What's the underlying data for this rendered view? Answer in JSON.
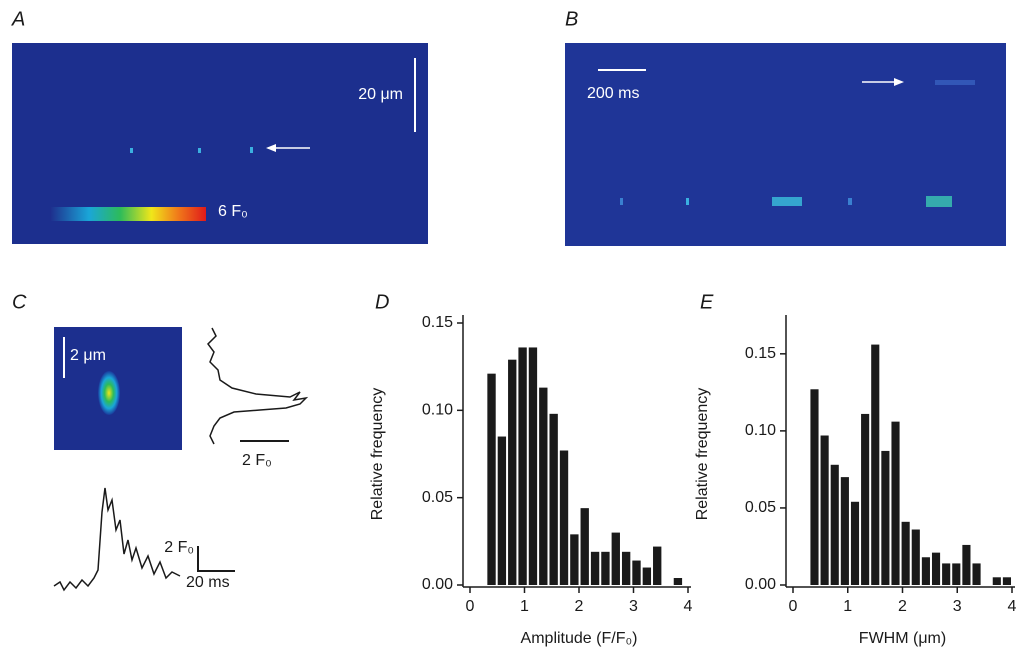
{
  "panels": {
    "A": {
      "label": "A",
      "scale_bar": "20 μm",
      "colorbar": "6 F₀"
    },
    "B": {
      "label": "B",
      "scale_bar": "200 ms"
    },
    "C": {
      "label": "C",
      "image_scale": "2 μm",
      "profile_scale": "2 F₀",
      "trace_scale_y": "2 F₀",
      "trace_scale_x": "20 ms"
    }
  },
  "chart_data": [
    {
      "type": "histogram",
      "label": "D",
      "xlabel": "Amplitude (F/F₀)",
      "ylabel": "Relative frequency",
      "color": "#1a1a1a",
      "bins": [
        0.3,
        0.49,
        0.68,
        0.87,
        1.06,
        1.25,
        1.44,
        1.63,
        1.82,
        2.01,
        2.2,
        2.39,
        2.58,
        2.77,
        2.96,
        3.15,
        3.34,
        3.53,
        3.72,
        3.91
      ],
      "counts": [
        0.121,
        0.085,
        0.129,
        0.136,
        0.136,
        0.113,
        0.098,
        0.077,
        0.029,
        0.044,
        0.019,
        0.019,
        0.03,
        0.019,
        0.014,
        0.01,
        0.022,
        0,
        0.004
      ],
      "xlim": [
        0,
        4
      ],
      "ylim": [
        0,
        0.15
      ],
      "xticks": [
        0,
        1,
        2,
        3,
        4
      ],
      "yticks": [
        {
          "value": 0,
          "label": "0.00"
        },
        {
          "value": 0.05,
          "label": "0.05"
        },
        {
          "value": 0.1,
          "label": "0.10"
        },
        {
          "value": 0.15,
          "label": "0.15"
        }
      ]
    },
    {
      "type": "histogram",
      "label": "E",
      "xlabel": "FWHM (μm)",
      "ylabel": "Relative frequency",
      "color": "#1a1a1a",
      "bins": [
        0.3,
        0.485,
        0.67,
        0.855,
        1.04,
        1.225,
        1.41,
        1.595,
        1.78,
        1.965,
        2.15,
        2.335,
        2.52,
        2.705,
        2.89,
        3.075,
        3.26,
        3.445,
        3.63,
        3.815,
        4.0
      ],
      "counts": [
        0.127,
        0.097,
        0.078,
        0.07,
        0.054,
        0.111,
        0.156,
        0.087,
        0.106,
        0.041,
        0.036,
        0.018,
        0.021,
        0.014,
        0.014,
        0.026,
        0.014,
        0,
        0.005,
        0.005
      ],
      "xlim": [
        0,
        4
      ],
      "ylim": [
        0,
        0.17
      ],
      "xticks": [
        0,
        1,
        2,
        3,
        4
      ],
      "yticks": [
        {
          "value": 0,
          "label": "0.00"
        },
        {
          "value": 0.05,
          "label": "0.05"
        },
        {
          "value": 0.1,
          "label": "0.10"
        },
        {
          "value": 0.15,
          "label": "0.15"
        }
      ]
    }
  ]
}
